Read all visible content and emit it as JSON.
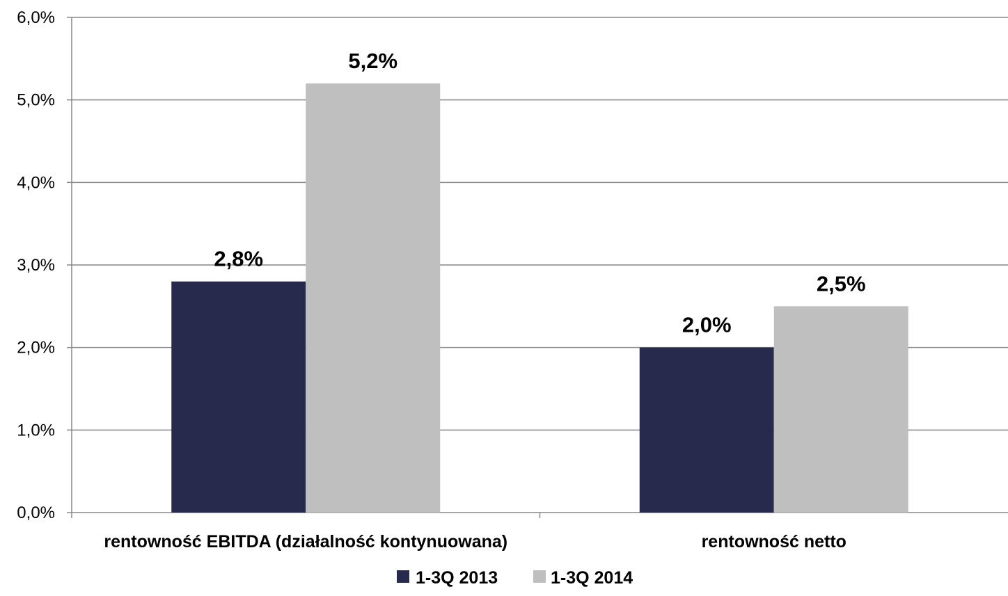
{
  "chart_data": {
    "type": "bar",
    "title": "",
    "xlabel": "",
    "ylabel": "",
    "categories": [
      "rentowność EBITDA (działalność kontynuowana)",
      "rentowność netto"
    ],
    "series": [
      {
        "name": "1-3Q 2013",
        "color": "#272a4c",
        "values": [
          2.8,
          2.0
        ],
        "labels": [
          "2,8%",
          "2,0%"
        ]
      },
      {
        "name": "1-3Q 2014",
        "color": "#bfbfbf",
        "values": [
          5.2,
          2.5
        ],
        "labels": [
          "5,2%",
          "2,5%"
        ]
      }
    ],
    "ylim": [
      0,
      6
    ],
    "yticks": [
      0,
      1,
      2,
      3,
      4,
      5,
      6
    ],
    "ytick_labels": [
      "0,0%",
      "1,0%",
      "2,0%",
      "3,0%",
      "4,0%",
      "5,0%",
      "6,0%"
    ],
    "grid": true,
    "gridline_color": "#878787",
    "legend": {
      "position": "bottom",
      "entries": [
        "1-3Q 2013",
        "1-3Q 2014"
      ]
    }
  }
}
